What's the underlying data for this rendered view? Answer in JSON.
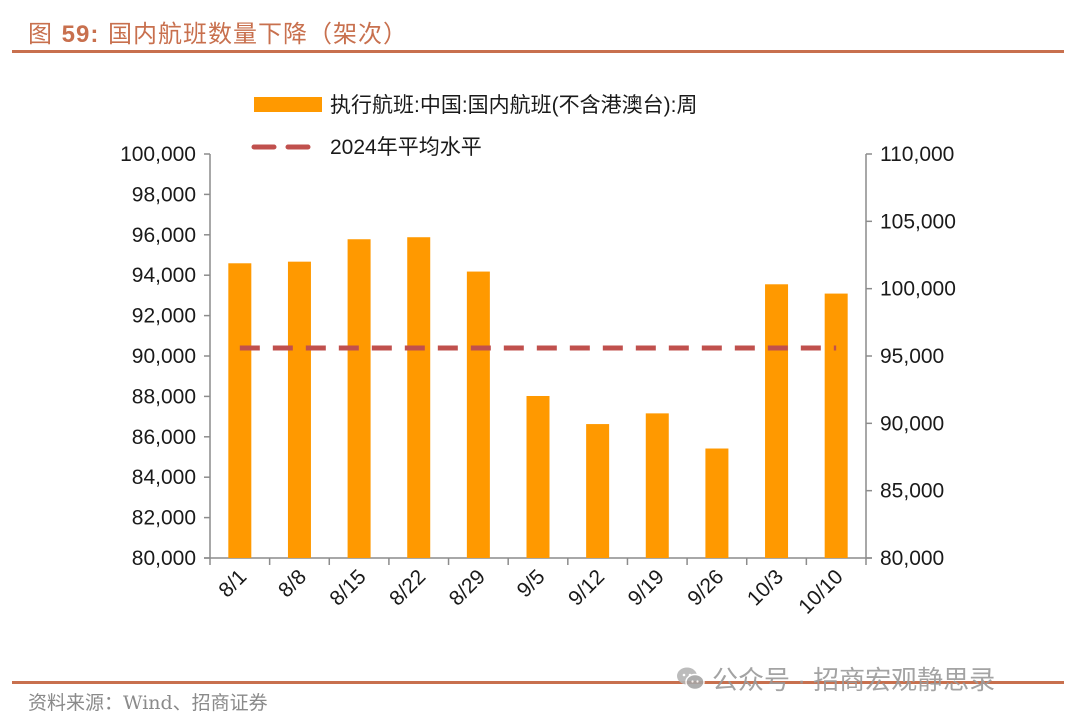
{
  "header": {
    "fig_label": "图 59:",
    "fig_number": "59",
    "title": "国内航班数量下降（架次）"
  },
  "footer": {
    "source": "资料来源：Wind、招商证券",
    "watermark": "公众号 · 招商宏观静思录"
  },
  "chart_data": {
    "type": "bar",
    "title": "国内航班数量下降（架次）",
    "categories": [
      "8/1",
      "8/8",
      "8/15",
      "8/22",
      "8/29",
      "9/5",
      "9/12",
      "9/19",
      "9/26",
      "10/3",
      "10/10"
    ],
    "series": [
      {
        "name": "执行航班:中国:国内航班(不含港澳台):周",
        "type": "bar",
        "axis": "left",
        "color": "#ff9900",
        "values": [
          94590,
          94670,
          95780,
          95880,
          94180,
          88020,
          86630,
          87160,
          85420,
          93550,
          93090
        ]
      },
      {
        "name": "2024年平均水平",
        "type": "line",
        "style": "dashed",
        "axis": "right",
        "color": "#c0504d",
        "values": [
          95590,
          95590,
          95590,
          95590,
          95590,
          95590,
          95590,
          95590,
          95590,
          95590,
          95590
        ]
      }
    ],
    "y_left": {
      "ylim": [
        80000,
        100000
      ],
      "ticks": [
        80000,
        82000,
        84000,
        86000,
        88000,
        90000,
        92000,
        94000,
        96000,
        98000,
        100000
      ],
      "tick_labels": [
        "80,000",
        "82,000",
        "84,000",
        "86,000",
        "88,000",
        "90,000",
        "92,000",
        "94,000",
        "96,000",
        "98,000",
        "100,000"
      ]
    },
    "y_right": {
      "ylim": [
        80000,
        110000
      ],
      "ticks": [
        80000,
        85000,
        90000,
        95000,
        100000,
        105000,
        110000
      ],
      "tick_labels": [
        "80,000",
        "85,000",
        "90,000",
        "95,000",
        "100,000",
        "105,000",
        "110,000"
      ]
    },
    "xlabel": "",
    "ylabel": "",
    "grid": false,
    "legend": {
      "position": "top",
      "entries": [
        "执行航班:中国:国内航班(不含港澳台):周",
        "2024年平均水平"
      ]
    }
  }
}
